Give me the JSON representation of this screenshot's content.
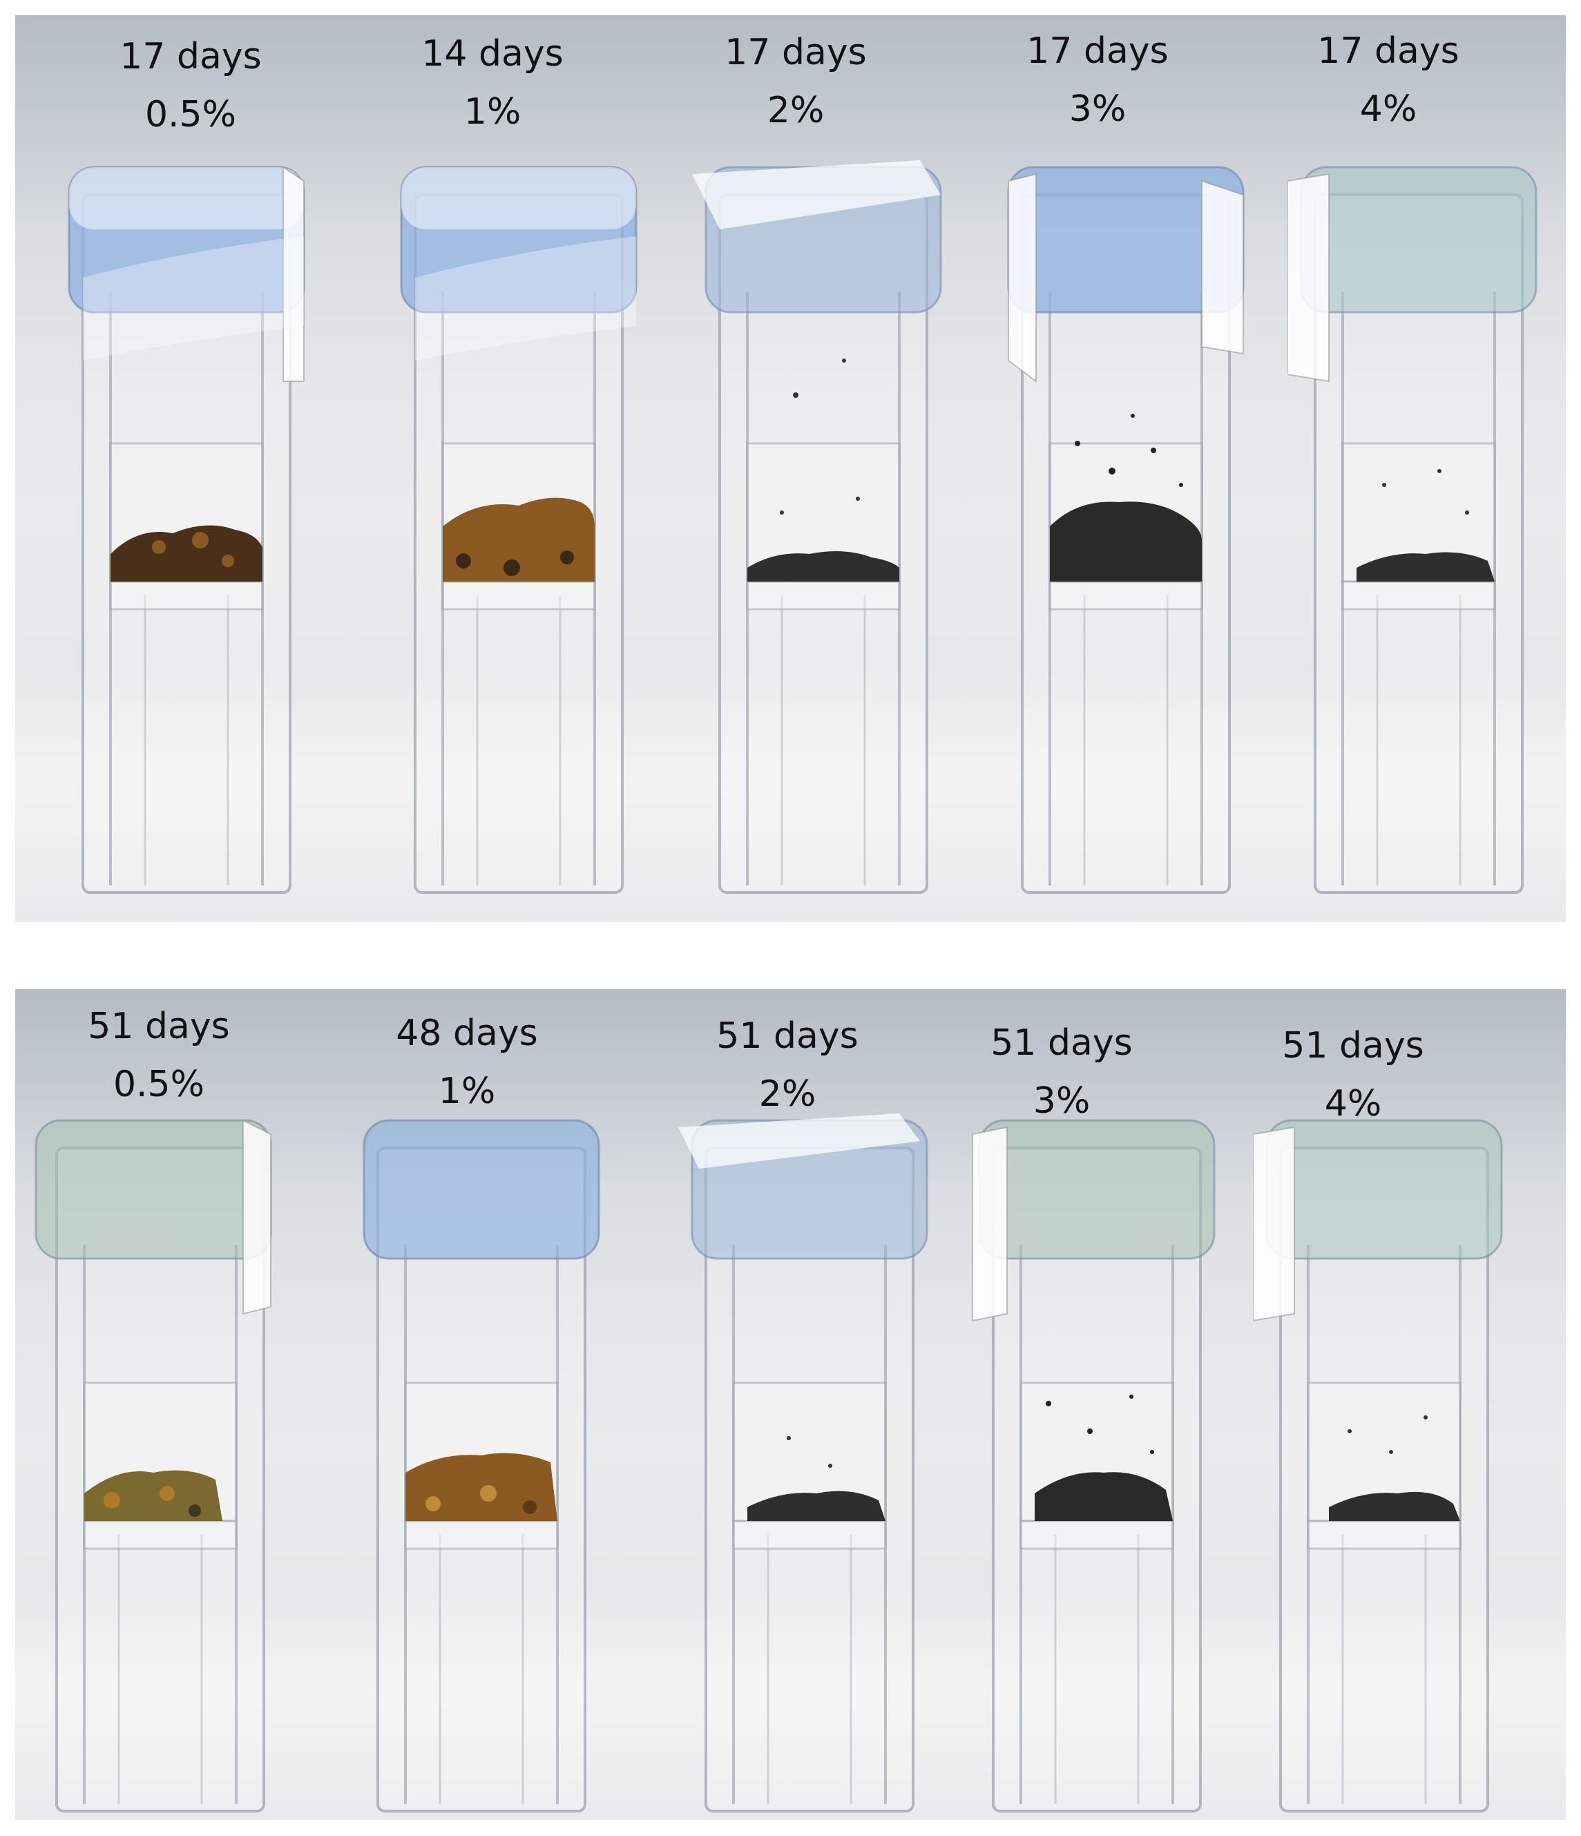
{
  "panels": [
    {
      "vials": [
        {
          "days": "17 days",
          "percent": "0.5%",
          "sample": "brown-black"
        },
        {
          "days": "14 days",
          "percent": "1%",
          "sample": "brown"
        },
        {
          "days": "17 days",
          "percent": "2%",
          "sample": "black-small"
        },
        {
          "days": "17 days",
          "percent": "3%",
          "sample": "black"
        },
        {
          "days": "17 days",
          "percent": "4%",
          "sample": "black-small"
        }
      ]
    },
    {
      "vials": [
        {
          "days": "51 days",
          "percent": "0.5%",
          "sample": "brown-green"
        },
        {
          "days": "48 days",
          "percent": "1%",
          "sample": "brown"
        },
        {
          "days": "51 days",
          "percent": "2%",
          "sample": "black-small"
        },
        {
          "days": "51 days",
          "percent": "3%",
          "sample": "black"
        },
        {
          "days": "51 days",
          "percent": "4%",
          "sample": "black-small"
        }
      ]
    }
  ],
  "colors": {
    "brown": "#8a5a22",
    "brown-black": "#4a3018",
    "brown-green": "#7a6a30",
    "black": "#2a2a28",
    "black-small": "#2e2e2c",
    "cap": "#8fb0e0"
  }
}
